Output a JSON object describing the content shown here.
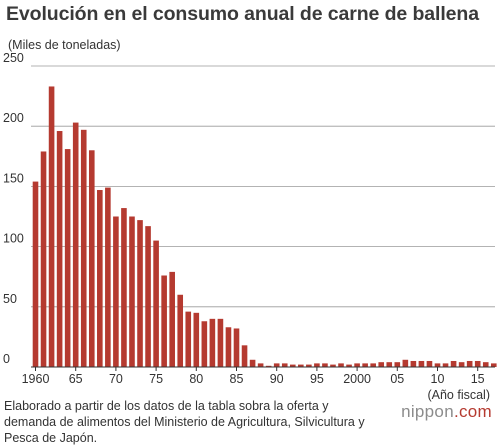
{
  "header": {
    "title": "Evolución en el consumo anual de carne de ballena",
    "unit_label": "(Miles de toneladas)"
  },
  "footer": {
    "source": "Elaborado a partir de los datos de la tabla sobra la oferta y demanda de alimentos del Ministerio de Agricultura, Silvicultura y Pesca de Japón.",
    "brand_name": "nippon",
    "brand_domain": ".com"
  },
  "chart_data": {
    "type": "bar",
    "title": "Evolución en el consumo anual de carne de ballena",
    "ylabel": "(Miles de toneladas)",
    "xlabel": "(Año fiscal)",
    "ylim": [
      0,
      250
    ],
    "yticks": [
      0,
      50,
      100,
      150,
      200,
      250
    ],
    "grid": true,
    "bar_color": "#b53a30",
    "categories": [
      1960,
      1961,
      1962,
      1963,
      1964,
      1965,
      1966,
      1967,
      1968,
      1969,
      1970,
      1971,
      1972,
      1973,
      1974,
      1975,
      1976,
      1977,
      1978,
      1979,
      1980,
      1981,
      1982,
      1983,
      1984,
      1985,
      1986,
      1987,
      1988,
      1989,
      1990,
      1991,
      1992,
      1993,
      1994,
      1995,
      1996,
      1997,
      1998,
      1999,
      2000,
      2001,
      2002,
      2003,
      2004,
      2005,
      2006,
      2007,
      2008,
      2009,
      2010,
      2011,
      2012,
      2013,
      2014,
      2015,
      2016,
      2017
    ],
    "values": [
      154,
      179,
      233,
      196,
      181,
      203,
      197,
      180,
      147,
      149,
      125,
      132,
      125,
      122,
      117,
      105,
      76,
      79,
      60,
      46,
      45,
      38,
      40,
      40,
      33,
      32,
      18,
      6,
      3,
      1,
      3,
      3,
      2,
      2,
      2,
      3,
      3,
      2,
      3,
      2,
      3,
      3,
      3,
      4,
      4,
      4,
      6,
      5,
      5,
      5,
      3,
      3,
      5,
      4,
      5,
      5,
      4,
      3
    ],
    "xtick_labels": [
      {
        "year": 1960,
        "label": "1960"
      },
      {
        "year": 1965,
        "label": "65"
      },
      {
        "year": 1970,
        "label": "70"
      },
      {
        "year": 1975,
        "label": "75"
      },
      {
        "year": 1980,
        "label": "80"
      },
      {
        "year": 1985,
        "label": "85"
      },
      {
        "year": 1990,
        "label": "90"
      },
      {
        "year": 1995,
        "label": "95"
      },
      {
        "year": 2000,
        "label": "2000"
      },
      {
        "year": 2005,
        "label": "05"
      },
      {
        "year": 2010,
        "label": "10"
      },
      {
        "year": 2015,
        "label": "15"
      }
    ]
  }
}
